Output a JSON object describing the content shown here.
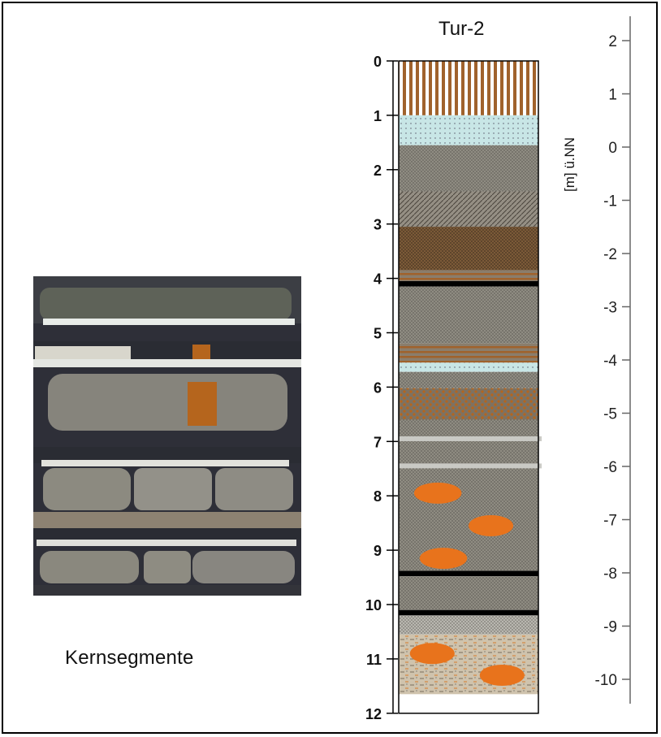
{
  "title": "Tur-2",
  "caption": "Kernsegmente",
  "elevation_axis_label": "[m] ü.NN",
  "depth_ticks": [
    "0",
    "1",
    "2",
    "3",
    "4",
    "5",
    "6",
    "7",
    "8",
    "9",
    "10",
    "11",
    "12"
  ],
  "elevation_ticks": [
    "2",
    "1",
    "0",
    "-1",
    "-2",
    "-3",
    "-4",
    "-5",
    "-6",
    "-7",
    "-8",
    "-9",
    "-10"
  ],
  "colors": {
    "brown": "#a0622c",
    "light_blue": "#c8e6e6",
    "grey": "#8a8a80",
    "dark_grey_brown": "#7a6a58",
    "orange": "#e8731c",
    "sand_beige": "#cdc0a8",
    "black": "#000000"
  },
  "layers": [
    {
      "top": 0.0,
      "bottom": 1.0,
      "pattern": "vertical-stripes-brown"
    },
    {
      "top": 1.0,
      "bottom": 1.55,
      "pattern": "light-blue-dotted"
    },
    {
      "top": 1.55,
      "bottom": 2.4,
      "pattern": "grey-dotted"
    },
    {
      "top": 2.4,
      "bottom": 3.05,
      "pattern": "grey-hatched"
    },
    {
      "top": 3.05,
      "bottom": 3.85,
      "pattern": "brown-dark-dotted"
    },
    {
      "top": 3.85,
      "bottom": 4.05,
      "pattern": "brown-thin-lines"
    },
    {
      "top": 4.05,
      "bottom": 4.15,
      "pattern": "black-band"
    },
    {
      "top": 4.15,
      "bottom": 5.2,
      "pattern": "grey-dotted"
    },
    {
      "top": 5.2,
      "bottom": 5.55,
      "pattern": "brown-thin-lines"
    },
    {
      "top": 5.55,
      "bottom": 5.72,
      "pattern": "light-blue-dotted"
    },
    {
      "top": 5.72,
      "bottom": 6.02,
      "pattern": "grey-dotted"
    },
    {
      "top": 6.02,
      "bottom": 6.6,
      "pattern": "brown-speckled"
    },
    {
      "top": 6.6,
      "bottom": 9.38,
      "pattern": "grey-dotted"
    },
    {
      "top": 9.38,
      "bottom": 9.48,
      "pattern": "black-band"
    },
    {
      "top": 9.48,
      "bottom": 10.1,
      "pattern": "grey-dotted"
    },
    {
      "top": 10.1,
      "bottom": 10.2,
      "pattern": "black-band"
    },
    {
      "top": 10.2,
      "bottom": 10.55,
      "pattern": "light-grey-dotted"
    },
    {
      "top": 10.55,
      "bottom": 11.65,
      "pattern": "sand-dashed"
    }
  ],
  "light_bands": [
    6.95,
    7.45
  ],
  "orange_nodules": [
    {
      "depth": 7.95,
      "pos": 0.28,
      "rx": 0.17
    },
    {
      "depth": 8.55,
      "pos": 0.66,
      "rx": 0.16
    },
    {
      "depth": 9.15,
      "pos": 0.32,
      "rx": 0.17
    },
    {
      "depth": 10.9,
      "pos": 0.24,
      "rx": 0.16
    },
    {
      "depth": 11.3,
      "pos": 0.74,
      "rx": 0.16
    }
  ]
}
